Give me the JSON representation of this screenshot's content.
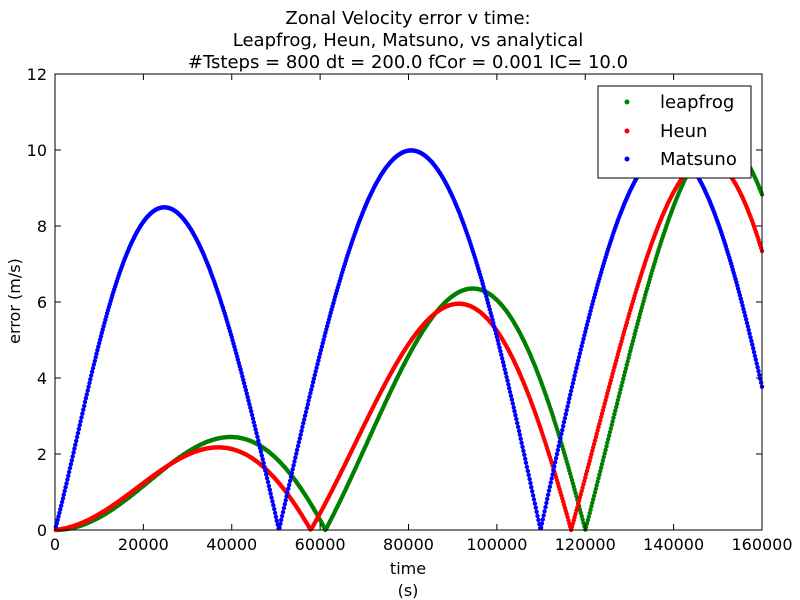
{
  "chart_data": {
    "type": "scatter",
    "title_lines": [
      "Zonal Velocity error v time:",
      "Leapfrog, Heun, Matsuno, vs analytical",
      "#Tsteps = 800 dt = 200.0 fCor = 0.001 IC= 10.0"
    ],
    "xlabel_lines": [
      "time",
      "(s)"
    ],
    "ylabel": "error (m/s)",
    "xlim": [
      0,
      160000
    ],
    "ylim": [
      0,
      12
    ],
    "xticks": [
      0,
      20000,
      40000,
      60000,
      80000,
      100000,
      120000,
      140000,
      160000
    ],
    "yticks": [
      0,
      2,
      4,
      6,
      8,
      10,
      12
    ],
    "grid": false,
    "legend_position": "top-right",
    "series": [
      {
        "name": "leapfrog",
        "color": "#008000",
        "description_of_shape": "Points from a 200 s step run; error oscillates in a band whose upper envelope grows roughly linearly with time, reaching ~11 m/s near t=160000 s.",
        "x_step": 200,
        "envelope_slope_per_s": 6.85e-05
      },
      {
        "name": "Heun",
        "color": "#ff0000",
        "description_of_shape": "Nearly identical to leapfrog: oscillating error with a linearly growing upper envelope (~6.5 m/s at t=100000 s).",
        "x_step": 200,
        "envelope_slope_per_s": 6.65e-05
      },
      {
        "name": "Matsuno",
        "color": "#0000ff",
        "description_of_shape": "Oscillating error whose upper envelope rises quickly and saturates near 10 m/s (~9.9 by t=40000 s), envelope ≈ 10*(1-exp(-t/12000)).",
        "x_step": 200,
        "saturation": 10,
        "time_constant_s": 12000
      }
    ]
  }
}
